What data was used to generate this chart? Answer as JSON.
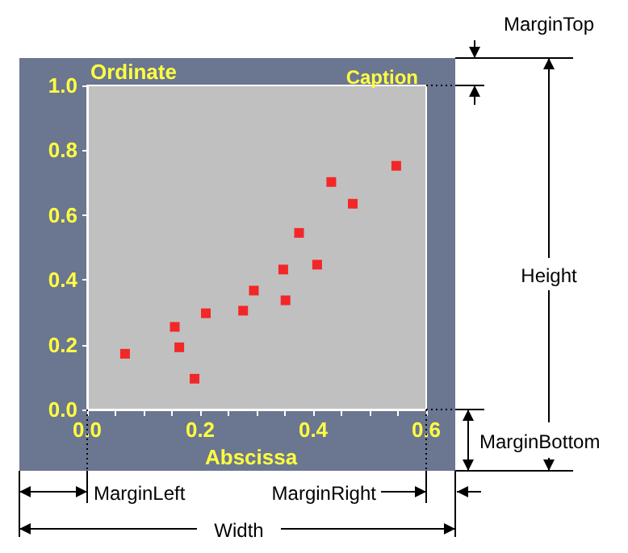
{
  "chart_data": {
    "type": "scatter",
    "title": "Caption",
    "xlabel": "Abscissa",
    "ylabel": "Ordinate",
    "annotations": [
      "MarginTop",
      "Height",
      "MarginBottom",
      "MarginLeft",
      "MarginRight",
      "Width"
    ],
    "x": [
      0.067,
      0.155,
      0.163,
      0.19,
      0.21,
      0.276,
      0.295,
      0.347,
      0.351,
      0.375,
      0.407,
      0.432,
      0.47,
      0.547
    ],
    "series": [
      {
        "color": "#ff0000",
        "values": [
          0.172,
          0.255,
          0.192,
          0.095,
          0.297,
          0.305,
          0.367,
          0.432,
          0.337,
          0.545,
          0.447,
          0.702,
          0.635,
          0.752
        ]
      }
    ],
    "marker": "square",
    "xlim": [
      0,
      0.6
    ],
    "ylim": [
      0,
      1
    ],
    "xticks": [
      {
        "value": 0,
        "label": "0.0"
      },
      {
        "value": 0.05,
        "label": null
      },
      {
        "value": 0.1,
        "label": null
      },
      {
        "value": 0.15,
        "label": null
      },
      {
        "value": 0.2,
        "label": "0.2"
      },
      {
        "value": 0.25,
        "label": null
      },
      {
        "value": 0.3,
        "label": null
      },
      {
        "value": 0.35,
        "label": null
      },
      {
        "value": 0.4,
        "label": "0.4"
      },
      {
        "value": 0.45,
        "label": null
      },
      {
        "value": 0.5,
        "label": null
      },
      {
        "value": 0.55,
        "label": null
      },
      {
        "value": 0.6,
        "label": "0.6"
      }
    ],
    "yticks": [
      {
        "value": 0,
        "label": "0.0"
      },
      {
        "value": 0.2,
        "label": "0.2"
      },
      {
        "value": 0.4,
        "label": "0.4"
      },
      {
        "value": 0.6,
        "label": "0.6"
      },
      {
        "value": 0.8,
        "label": "0.8"
      },
      {
        "value": 1,
        "label": "1.0"
      }
    ],
    "grid": false
  }
}
